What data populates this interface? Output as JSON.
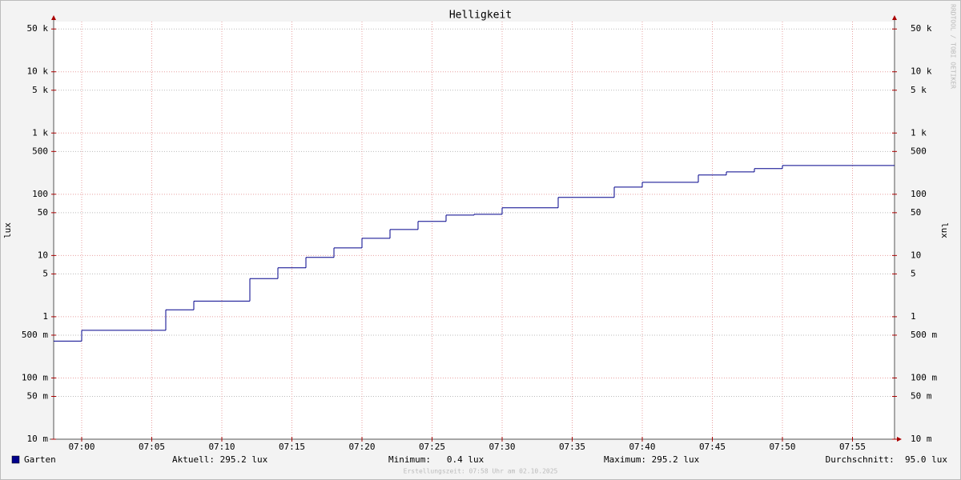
{
  "chart_data": {
    "type": "step",
    "title": "Helligkeit",
    "y_label": "lux",
    "watermark": "RRDTOOL / TOBI OETIKER",
    "log_scale": true,
    "grid": true,
    "x": [
      "06:58",
      "07:00",
      "07:06",
      "07:08",
      "07:12",
      "07:14",
      "07:16",
      "07:18",
      "07:20",
      "07:22",
      "07:24",
      "07:26",
      "07:28",
      "07:30",
      "07:34",
      "07:38",
      "07:40",
      "07:44",
      "07:46",
      "07:48",
      "07:50"
    ],
    "xlim": [
      "06:58",
      "07:58"
    ],
    "xticks": [
      "07:00",
      "07:05",
      "07:10",
      "07:15",
      "07:20",
      "07:25",
      "07:30",
      "07:35",
      "07:40",
      "07:45",
      "07:50",
      "07:55"
    ],
    "ylim": [
      0.01,
      66000
    ],
    "yticks": [
      {
        "value": 0.01,
        "label": "10 m"
      },
      {
        "value": 0.05,
        "label": "50 m"
      },
      {
        "value": 0.1,
        "label": "100 m"
      },
      {
        "value": 0.5,
        "label": "500 m"
      },
      1,
      5,
      10,
      50,
      100,
      500,
      {
        "value": 1000,
        "label": "1 k"
      },
      {
        "value": 5000,
        "label": "5 k"
      },
      {
        "value": 10000,
        "label": "10 k"
      },
      {
        "value": 50000,
        "label": "50 k"
      }
    ],
    "series": [
      {
        "name": "Garten",
        "color": "#00008b",
        "values": [
          0.4,
          0.6,
          1.3,
          1.8,
          4.2,
          6.3,
          9.3,
          13.3,
          19.1,
          26.6,
          36,
          45.7,
          47,
          60,
          88.7,
          131,
          157,
          206,
          232,
          262,
          295.2
        ]
      }
    ],
    "stats": [
      "Aktuell: 295.2 lux",
      "Minimum:   0.4 lux",
      "Maximum: 295.2 lux",
      "Durchschnitt:  95.0 lux"
    ],
    "footer": "Erstellungszeit: 07:58 Uhr am 02.10.2025"
  }
}
